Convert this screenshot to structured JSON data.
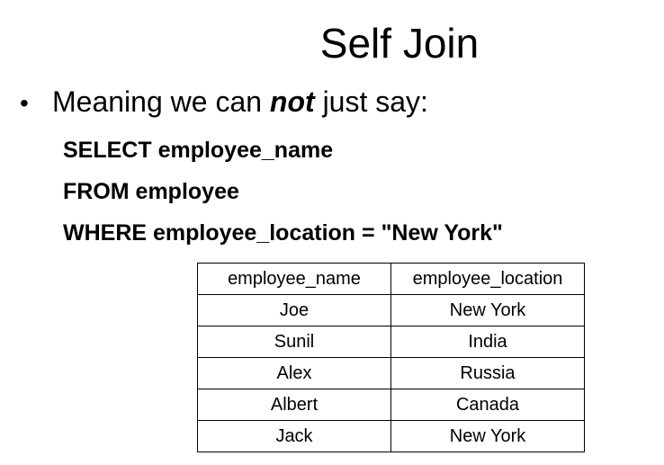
{
  "slide": {
    "title": "Self Join",
    "bullet": {
      "text_before": "Meaning we can ",
      "emphasis": "not",
      "text_after": " just say:"
    },
    "sql": [
      "SELECT employee_name",
      "FROM employee",
      "WHERE employee_location = \"New York\""
    ],
    "table": {
      "headers": [
        "employee_name",
        "employee_location"
      ],
      "rows": [
        [
          "Joe",
          "New York"
        ],
        [
          "Sunil",
          "India"
        ],
        [
          "Alex",
          "Russia"
        ],
        [
          "Albert",
          "Canada"
        ],
        [
          "Jack",
          "New York"
        ]
      ]
    }
  }
}
